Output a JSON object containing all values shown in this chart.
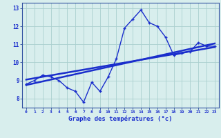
{
  "xlabel": "Graphe des températures (°c)",
  "hours": [
    0,
    1,
    2,
    3,
    4,
    5,
    6,
    7,
    8,
    9,
    10,
    11,
    12,
    13,
    14,
    15,
    16,
    17,
    18,
    19,
    20,
    21,
    22,
    23
  ],
  "temps": [
    8.8,
    9.0,
    9.3,
    9.2,
    9.0,
    8.6,
    8.4,
    7.8,
    8.9,
    8.4,
    9.2,
    10.2,
    11.9,
    12.4,
    12.9,
    12.2,
    12.0,
    11.4,
    10.4,
    10.5,
    10.6,
    11.1,
    10.9,
    10.9
  ],
  "trend1_x": [
    0,
    23
  ],
  "trend1_y": [
    8.75,
    11.05
  ],
  "trend2_x": [
    0,
    23
  ],
  "trend2_y": [
    9.05,
    10.85
  ],
  "bg_color": "#d8eeed",
  "grid_color": "#aacfcf",
  "line_color": "#1a2ecc",
  "tick_color": "#1a2ecc",
  "ylim": [
    7.5,
    13.3
  ],
  "xlim": [
    -0.5,
    23.5
  ],
  "yticks": [
    8,
    9,
    10,
    11,
    12,
    13
  ],
  "ytick_labels": [
    "8",
    "9",
    "10",
    "11",
    "12",
    "13"
  ]
}
